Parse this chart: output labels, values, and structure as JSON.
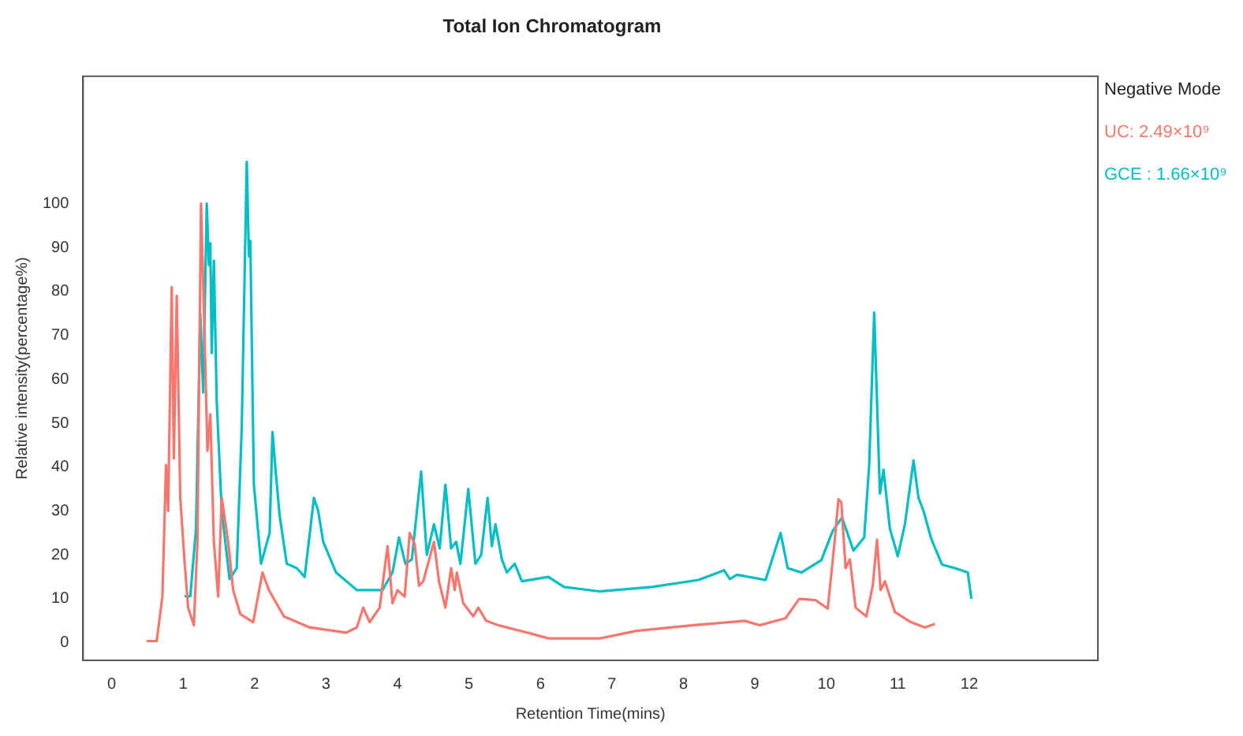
{
  "chart_data": {
    "type": "line",
    "title": "Total Ion Chromatogram",
    "xlabel": "Retention Time(mins)",
    "ylabel": "Relative intensity(percentage%)",
    "legend_title": "Negative Mode",
    "legend": "right",
    "grid": false,
    "marker": "none",
    "line_style": "solid",
    "xlim": [
      -0.4,
      13.8
    ],
    "xticks": [
      0,
      1,
      2,
      3,
      4,
      5,
      6,
      7,
      8,
      9,
      10,
      11,
      12
    ],
    "ylim": [
      -4,
      129
    ],
    "yticks": [
      0,
      10,
      20,
      30,
      40,
      50,
      60,
      70,
      80,
      90,
      100
    ],
    "series": [
      {
        "name": "UC: 2.49×10⁹",
        "color": "#f8766d",
        "x": [
          0.49,
          0.63,
          0.71,
          0.76,
          0.79,
          0.84,
          0.87,
          0.91,
          0.96,
          1.02,
          1.07,
          1.15,
          1.2,
          1.25,
          1.29,
          1.34,
          1.38,
          1.43,
          1.49,
          1.54,
          1.63,
          1.7,
          1.8,
          1.98,
          2.11,
          2.2,
          2.41,
          2.77,
          3.28,
          3.43,
          3.52,
          3.61,
          3.75,
          3.86,
          3.93,
          4.0,
          4.1,
          4.17,
          4.24,
          4.3,
          4.36,
          4.51,
          4.58,
          4.67,
          4.75,
          4.8,
          4.83,
          4.92,
          5.06,
          5.13,
          5.24,
          5.41,
          5.67,
          5.82,
          6.11,
          6.83,
          7.34,
          8.14,
          8.86,
          9.07,
          9.43,
          9.62,
          9.85,
          10.02,
          10.11,
          10.17,
          10.21,
          10.27,
          10.33,
          10.41,
          10.56,
          10.65,
          10.71,
          10.76,
          10.82,
          10.96,
          11.17,
          11.38,
          11.52
        ],
        "values": [
          0.4,
          0.4,
          10.6,
          40.5,
          30,
          81,
          42,
          79,
          33,
          18.4,
          8,
          4,
          23,
          100,
          76,
          43.7,
          52,
          23,
          10.5,
          33,
          23,
          12,
          6.5,
          4.7,
          16,
          12,
          6,
          3.5,
          2.3,
          3.5,
          8,
          4.7,
          8,
          22,
          9,
          12,
          10.5,
          25,
          22.5,
          13,
          14,
          23,
          14,
          8,
          17,
          12,
          16,
          9,
          6,
          8,
          5,
          4,
          2.9,
          2.3,
          1,
          1,
          2.7,
          4,
          5,
          4,
          5.6,
          10,
          9.7,
          7.8,
          22,
          32.7,
          32,
          17,
          19,
          8,
          6,
          13,
          23.5,
          12,
          14,
          7,
          4.8,
          3.5,
          4.3
        ]
      },
      {
        "name": "GCE : 1.66×10⁹",
        "color": "#00bfc4",
        "x": [
          1.02,
          1.1,
          1.18,
          1.24,
          1.28,
          1.33,
          1.36,
          1.38,
          1.4,
          1.43,
          1.47,
          1.54,
          1.65,
          1.75,
          1.82,
          1.89,
          1.92,
          1.94,
          1.99,
          2.09,
          2.21,
          2.25,
          2.3,
          2.35,
          2.45,
          2.59,
          2.7,
          2.77,
          2.83,
          2.89,
          2.96,
          3.14,
          3.43,
          3.79,
          3.93,
          4.02,
          4.11,
          4.2,
          4.33,
          4.41,
          4.51,
          4.59,
          4.67,
          4.75,
          4.82,
          4.88,
          4.99,
          5.09,
          5.17,
          5.26,
          5.32,
          5.37,
          5.46,
          5.53,
          5.64,
          5.74,
          6.11,
          6.33,
          6.83,
          7.56,
          8.21,
          8.57,
          8.65,
          8.75,
          9.15,
          9.36,
          9.46,
          9.65,
          9.93,
          10.09,
          10.22,
          10.38,
          10.53,
          10.6,
          10.67,
          10.75,
          10.8,
          10.89,
          11.0,
          11.1,
          11.22,
          11.29,
          11.36,
          11.47,
          11.62,
          11.8,
          11.98,
          12.03
        ],
        "values": [
          10.6,
          10.6,
          26,
          75,
          57,
          100,
          86,
          91,
          66,
          87,
          55,
          30,
          14.5,
          17,
          49,
          109.5,
          88,
          91.5,
          36,
          18,
          25,
          48,
          38,
          29,
          18,
          17,
          15,
          24.6,
          33,
          30,
          23,
          16,
          12,
          12,
          16,
          24,
          18,
          19,
          39,
          20,
          27,
          21.5,
          36,
          21.5,
          23,
          18,
          35,
          18,
          20,
          33,
          22,
          27,
          19,
          16,
          18,
          14,
          15,
          12.7,
          11.7,
          12.7,
          14.3,
          16.5,
          14.5,
          15.5,
          14.3,
          25,
          17,
          16,
          18.8,
          25.5,
          28.5,
          21,
          24,
          40.5,
          75.2,
          34,
          39.4,
          26,
          19.7,
          27,
          41.5,
          33,
          30,
          23.6,
          17.8,
          17,
          16,
          10
        ]
      }
    ]
  }
}
